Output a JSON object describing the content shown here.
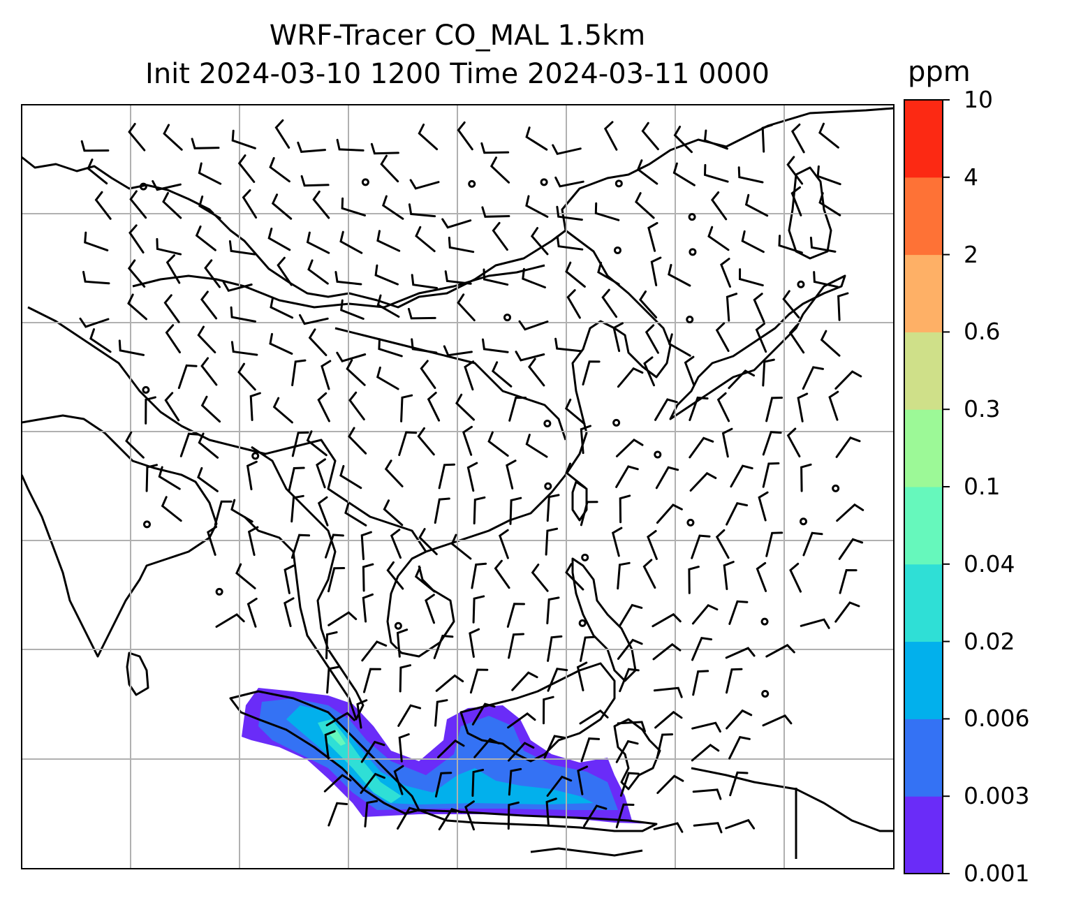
{
  "title": {
    "line1": "WRF-Tracer CO_MAL 1.5km",
    "line2": "Init 2024-03-10 1200 Time 2024-03-11 0000"
  },
  "colorbar": {
    "unit": "ppm",
    "ticks": [
      "0.001",
      "0.003",
      "0.006",
      "0.02",
      "0.04",
      "0.1",
      "0.3",
      "0.6",
      "2",
      "4",
      "10"
    ],
    "colors": [
      "#6a2cf8",
      "#3472f4",
      "#02b0ec",
      "#2fdfd6",
      "#66f8bc",
      "#9cf997",
      "#cfe089",
      "#feb066",
      "#fe7236",
      "#fc2913"
    ]
  },
  "map": {
    "grid": "on",
    "tracer_plume_colors": [
      "#6a2cf8",
      "#3472f4",
      "#02b0ec",
      "#2fdfd6",
      "#66f8bc"
    ],
    "wind_barb_color": "#000000",
    "coastline_color": "#000000",
    "gridline_color": "#b0b0b0"
  }
}
